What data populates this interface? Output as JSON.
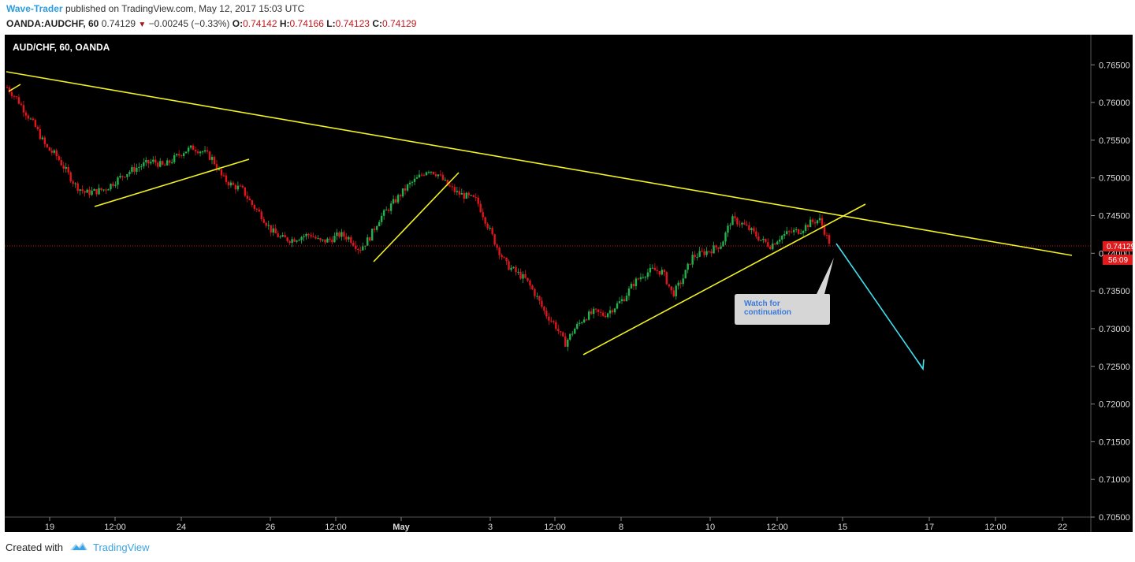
{
  "header": {
    "author": "Wave-Trader",
    "published_text": "published on TradingView.com, May 12, 2017 15:03 UTC",
    "symbol": "OANDA:AUDCHF, 60",
    "last": "0.74129",
    "change": "−0.00245 (−0.33%)",
    "o_label": "O:",
    "o_value": "0.74142",
    "h_label": "H:",
    "h_value": "0.74166",
    "l_label": "L:",
    "l_value": "0.74123",
    "c_label": "C:",
    "c_value": "0.74129"
  },
  "chart_title": "AUD/CHF, 60, OANDA",
  "annotation": {
    "text_line1": "Watch for",
    "text_line2": "continuation"
  },
  "price_badge": {
    "price": "0.74129",
    "timer": "56:09"
  },
  "footer": {
    "created_with": "Created with",
    "brand": "TradingView"
  },
  "colors": {
    "background": "#000000",
    "up": "#22b14c",
    "down": "#e3141b",
    "trendline": "#f2f21e",
    "arrow": "#3fe0ef",
    "axis_text": "#dddddd",
    "badge": "#e31a1c"
  },
  "chart_data": {
    "type": "candlestick",
    "title": "AUD/CHF, 60, OANDA",
    "ylim": [
      0.705,
      0.769
    ],
    "y_ticks": [
      "0.76500",
      "0.76000",
      "0.75500",
      "0.75000",
      "0.74500",
      "0.74000",
      "0.73500",
      "0.73000",
      "0.72500",
      "0.72000",
      "0.71500",
      "0.71000",
      "0.70500"
    ],
    "x_ticks": [
      "19",
      "12:00",
      "24",
      "26",
      "12:00",
      "May",
      "3",
      "12:00",
      "8",
      "10",
      "12:00",
      "15",
      "17",
      "12:00",
      "22"
    ],
    "last_price": 0.74129,
    "price_path": [
      [
        0,
        0.762
      ],
      [
        2,
        0.7605
      ],
      [
        4,
        0.7585
      ],
      [
        6,
        0.7565
      ],
      [
        8,
        0.754
      ],
      [
        10,
        0.753
      ],
      [
        12,
        0.751
      ],
      [
        14,
        0.749
      ],
      [
        16,
        0.748
      ],
      [
        18,
        0.7482
      ],
      [
        20,
        0.7485
      ],
      [
        22,
        0.7495
      ],
      [
        24,
        0.7505
      ],
      [
        26,
        0.7512
      ],
      [
        28,
        0.7518
      ],
      [
        30,
        0.7522
      ],
      [
        32,
        0.7515
      ],
      [
        34,
        0.7525
      ],
      [
        36,
        0.7535
      ],
      [
        38,
        0.754
      ],
      [
        40,
        0.7535
      ],
      [
        42,
        0.7525
      ],
      [
        44,
        0.75
      ],
      [
        46,
        0.749
      ],
      [
        48,
        0.7485
      ],
      [
        50,
        0.7465
      ],
      [
        52,
        0.745
      ],
      [
        54,
        0.743
      ],
      [
        56,
        0.742
      ],
      [
        58,
        0.7418
      ],
      [
        60,
        0.7422
      ],
      [
        62,
        0.7425
      ],
      [
        64,
        0.7415
      ],
      [
        66,
        0.7418
      ],
      [
        68,
        0.7425
      ],
      [
        70,
        0.742
      ],
      [
        72,
        0.7405
      ],
      [
        74,
        0.742
      ],
      [
        76,
        0.7445
      ],
      [
        78,
        0.746
      ],
      [
        80,
        0.7475
      ],
      [
        82,
        0.749
      ],
      [
        84,
        0.75
      ],
      [
        86,
        0.7512
      ],
      [
        88,
        0.7505
      ],
      [
        90,
        0.749
      ],
      [
        92,
        0.748
      ],
      [
        94,
        0.7475
      ],
      [
        96,
        0.747
      ],
      [
        98,
        0.744
      ],
      [
        100,
        0.741
      ],
      [
        102,
        0.7385
      ],
      [
        104,
        0.7375
      ],
      [
        106,
        0.7365
      ],
      [
        108,
        0.7345
      ],
      [
        110,
        0.732
      ],
      [
        112,
        0.7305
      ],
      [
        114,
        0.728
      ],
      [
        116,
        0.73
      ],
      [
        118,
        0.7315
      ],
      [
        120,
        0.7322
      ],
      [
        122,
        0.7318
      ],
      [
        124,
        0.7328
      ],
      [
        126,
        0.734
      ],
      [
        128,
        0.736
      ],
      [
        130,
        0.7372
      ],
      [
        132,
        0.7378
      ],
      [
        134,
        0.7375
      ],
      [
        136,
        0.7345
      ],
      [
        138,
        0.7365
      ],
      [
        140,
        0.7395
      ],
      [
        142,
        0.74
      ],
      [
        144,
        0.7405
      ],
      [
        146,
        0.7412
      ],
      [
        148,
        0.7445
      ],
      [
        150,
        0.744
      ],
      [
        152,
        0.743
      ],
      [
        154,
        0.7418
      ],
      [
        156,
        0.741
      ],
      [
        158,
        0.7422
      ],
      [
        160,
        0.7428
      ],
      [
        162,
        0.743
      ],
      [
        164,
        0.744
      ],
      [
        166,
        0.7445
      ],
      [
        167,
        0.743
      ],
      [
        168,
        0.7413
      ]
    ]
  }
}
